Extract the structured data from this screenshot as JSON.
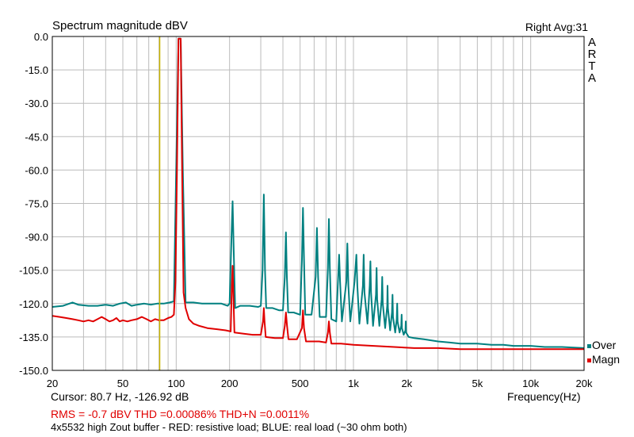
{
  "header": {
    "title": "Spectrum magnitude dBV",
    "channel_avg": "Right  Avg:31",
    "brand": [
      "A",
      "R",
      "T",
      "A"
    ]
  },
  "footer": {
    "cursor": "Cursor:    80.7 Hz, -126.92 dB",
    "rms": "RMS =   -0.7 dBV   THD =0.00086%   THD+N =0.0011%",
    "description": "4x5532 high Zout buffer - RED: resistive load; BLUE: real load (~30 ohm both)",
    "freq_label": "Frequency(Hz)"
  },
  "legend": [
    {
      "label": "Over",
      "color": "#008080"
    },
    {
      "label": "Magn",
      "color": "#e00000"
    }
  ],
  "chart_data": {
    "type": "line",
    "title": "Spectrum magnitude dBV",
    "xlabel": "Frequency(Hz)",
    "ylabel": "",
    "xscale": "log",
    "xlim": [
      20,
      20000
    ],
    "ylim": [
      -150,
      0
    ],
    "xticks": [
      20,
      50,
      100,
      200,
      500,
      1000,
      2000,
      5000,
      10000,
      20000
    ],
    "xticklabels": [
      "20",
      "50",
      "100",
      "200",
      "500",
      "1k",
      "2k",
      "5k",
      "10k",
      "20k"
    ],
    "yticks": [
      0,
      -15,
      -30,
      -45,
      -60,
      -75,
      -90,
      -105,
      -120,
      -135,
      -150
    ],
    "yticklabels": [
      "0.0",
      "-15.0",
      "-30.0",
      "-45.0",
      "-60.0",
      "-75.0",
      "-90.0",
      "-105.0",
      "-120.0",
      "-135.0",
      "-150.0"
    ],
    "grid": true,
    "legend_position": "bottom-right",
    "cursor": {
      "x": 80.7,
      "y": -126.92,
      "color": "#c8b400"
    },
    "series": [
      {
        "name": "Over",
        "color": "#008080",
        "points": [
          [
            20,
            -121.5
          ],
          [
            23,
            -121
          ],
          [
            26,
            -119.5
          ],
          [
            28,
            -120.5
          ],
          [
            32,
            -121
          ],
          [
            36,
            -121
          ],
          [
            40,
            -120.5
          ],
          [
            44,
            -121
          ],
          [
            48,
            -120
          ],
          [
            52,
            -119.5
          ],
          [
            56,
            -121
          ],
          [
            60,
            -120.5
          ],
          [
            66,
            -120
          ],
          [
            72,
            -120.5
          ],
          [
            78,
            -120
          ],
          [
            85,
            -120
          ],
          [
            92,
            -119.5
          ],
          [
            97,
            -119
          ],
          [
            100,
            -60
          ],
          [
            103,
            -1
          ],
          [
            106,
            -1
          ],
          [
            109,
            -60
          ],
          [
            113,
            -119.5
          ],
          [
            125,
            -119.5
          ],
          [
            140,
            -120
          ],
          [
            160,
            -120
          ],
          [
            180,
            -120
          ],
          [
            195,
            -121
          ],
          [
            200,
            -120
          ],
          [
            205,
            -90
          ],
          [
            208,
            -74
          ],
          [
            211,
            -96
          ],
          [
            215,
            -122
          ],
          [
            230,
            -121
          ],
          [
            260,
            -121
          ],
          [
            290,
            -121.5
          ],
          [
            300,
            -121
          ],
          [
            307,
            -105
          ],
          [
            312,
            -71
          ],
          [
            317,
            -105
          ],
          [
            322,
            -122
          ],
          [
            350,
            -122
          ],
          [
            380,
            -123
          ],
          [
            400,
            -123
          ],
          [
            410,
            -108
          ],
          [
            416,
            -88
          ],
          [
            421,
            -108
          ],
          [
            428,
            -124
          ],
          [
            460,
            -124
          ],
          [
            500,
            -125
          ],
          [
            512,
            -100
          ],
          [
            519,
            -77
          ],
          [
            526,
            -100
          ],
          [
            535,
            -125
          ],
          [
            580,
            -125
          ],
          [
            612,
            -108
          ],
          [
            622,
            -86
          ],
          [
            632,
            -108
          ],
          [
            645,
            -126
          ],
          [
            700,
            -126
          ],
          [
            718,
            -104
          ],
          [
            727,
            -82
          ],
          [
            736,
            -104
          ],
          [
            750,
            -127
          ],
          [
            800,
            -128
          ],
          [
            820,
            -108
          ],
          [
            830,
            -98
          ],
          [
            840,
            -110
          ],
          [
            860,
            -128
          ],
          [
            912,
            -110
          ],
          [
            924,
            -93
          ],
          [
            936,
            -112
          ],
          [
            960,
            -128
          ],
          [
            1015,
            -110
          ],
          [
            1039,
            -98
          ],
          [
            1052,
            -112
          ],
          [
            1080,
            -129
          ],
          [
            1130,
            -112
          ],
          [
            1142,
            -98
          ],
          [
            1154,
            -115
          ],
          [
            1200,
            -129
          ],
          [
            1235,
            -112
          ],
          [
            1246,
            -101
          ],
          [
            1257,
            -115
          ],
          [
            1290,
            -130
          ],
          [
            1340,
            -116
          ],
          [
            1350,
            -104
          ],
          [
            1360,
            -118
          ],
          [
            1400,
            -130
          ],
          [
            1443,
            -118
          ],
          [
            1453,
            -108
          ],
          [
            1463,
            -120
          ],
          [
            1510,
            -131
          ],
          [
            1550,
            -121
          ],
          [
            1557,
            -112
          ],
          [
            1565,
            -122
          ],
          [
            1610,
            -132
          ],
          [
            1650,
            -124
          ],
          [
            1661,
            -116
          ],
          [
            1672,
            -126
          ],
          [
            1720,
            -133
          ],
          [
            1755,
            -127
          ],
          [
            1765,
            -120
          ],
          [
            1775,
            -128
          ],
          [
            1820,
            -133
          ],
          [
            1860,
            -130
          ],
          [
            1869,
            -125
          ],
          [
            1878,
            -131
          ],
          [
            1920,
            -134
          ],
          [
            1965,
            -132
          ],
          [
            1973,
            -128
          ],
          [
            1981,
            -133
          ],
          [
            2050,
            -135
          ],
          [
            2200,
            -135.5
          ],
          [
            2500,
            -136
          ],
          [
            3000,
            -137
          ],
          [
            3500,
            -137.5
          ],
          [
            4000,
            -138
          ],
          [
            5000,
            -138
          ],
          [
            6000,
            -138.5
          ],
          [
            7000,
            -138.5
          ],
          [
            8000,
            -139
          ],
          [
            10000,
            -139
          ],
          [
            12000,
            -139.5
          ],
          [
            15000,
            -139.5
          ],
          [
            20000,
            -140
          ]
        ]
      },
      {
        "name": "Magn",
        "color": "#e00000",
        "points": [
          [
            20,
            -125.5
          ],
          [
            22,
            -126
          ],
          [
            24,
            -126.5
          ],
          [
            26,
            -127
          ],
          [
            28,
            -127.5
          ],
          [
            30,
            -128
          ],
          [
            32,
            -127.5
          ],
          [
            34,
            -128
          ],
          [
            36,
            -127
          ],
          [
            38,
            -126
          ],
          [
            40,
            -127
          ],
          [
            42,
            -128
          ],
          [
            44,
            -127.5
          ],
          [
            46,
            -126.5
          ],
          [
            48,
            -128
          ],
          [
            50,
            -127.5
          ],
          [
            53,
            -128
          ],
          [
            56,
            -127.5
          ],
          [
            60,
            -127
          ],
          [
            64,
            -126
          ],
          [
            68,
            -127
          ],
          [
            72,
            -128
          ],
          [
            76,
            -127
          ],
          [
            80,
            -127.5
          ],
          [
            85,
            -127.5
          ],
          [
            90,
            -126.5
          ],
          [
            94,
            -126
          ],
          [
            97,
            -125
          ],
          [
            99,
            -110
          ],
          [
            101,
            -60
          ],
          [
            103,
            -1
          ],
          [
            106,
            -1
          ],
          [
            108,
            -60
          ],
          [
            110,
            -115
          ],
          [
            113,
            -122
          ],
          [
            118,
            -127
          ],
          [
            125,
            -129
          ],
          [
            135,
            -130
          ],
          [
            150,
            -131
          ],
          [
            170,
            -131.5
          ],
          [
            190,
            -132
          ],
          [
            203,
            -132.5
          ],
          [
            206,
            -112
          ],
          [
            208,
            -103
          ],
          [
            210,
            -115
          ],
          [
            213,
            -133
          ],
          [
            240,
            -133.5
          ],
          [
            270,
            -134
          ],
          [
            300,
            -134
          ],
          [
            309,
            -128
          ],
          [
            312,
            -122
          ],
          [
            315,
            -128
          ],
          [
            320,
            -135
          ],
          [
            360,
            -135.5
          ],
          [
            400,
            -135.5
          ],
          [
            410,
            -130
          ],
          [
            416,
            -124
          ],
          [
            422,
            -130
          ],
          [
            430,
            -136
          ],
          [
            480,
            -136
          ],
          [
            512,
            -131
          ],
          [
            519,
            -123
          ],
          [
            526,
            -131
          ],
          [
            540,
            -137
          ],
          [
            600,
            -137
          ],
          [
            640,
            -137
          ],
          [
            700,
            -137.5
          ],
          [
            718,
            -133
          ],
          [
            727,
            -128
          ],
          [
            736,
            -133
          ],
          [
            750,
            -138
          ],
          [
            850,
            -138
          ],
          [
            1000,
            -138.5
          ],
          [
            1300,
            -139
          ],
          [
            1700,
            -139.5
          ],
          [
            2200,
            -140
          ],
          [
            3000,
            -140
          ],
          [
            4000,
            -140.5
          ],
          [
            5000,
            -140.5
          ],
          [
            7000,
            -140.5
          ],
          [
            10000,
            -140.5
          ],
          [
            14000,
            -140.5
          ],
          [
            20000,
            -140.5
          ]
        ]
      }
    ]
  }
}
